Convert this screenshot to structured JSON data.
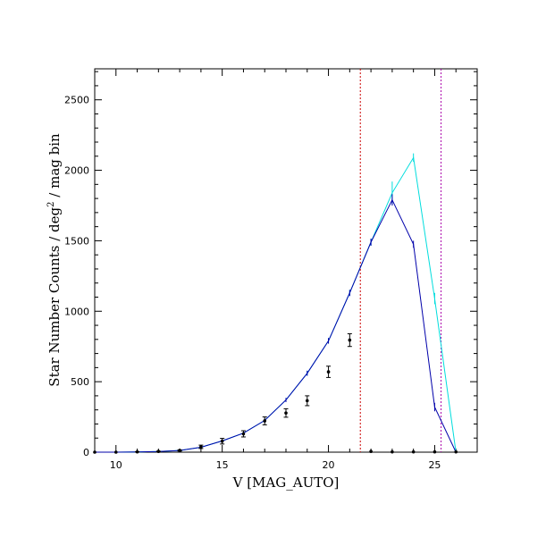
{
  "chart_data": {
    "type": "line",
    "xlabel": "V [MAG_AUTO]",
    "ylabel_parts": [
      "Star Number Counts / deg",
      "2",
      " / mag bin"
    ],
    "xlim": [
      9,
      27
    ],
    "ylim": [
      0,
      2720
    ],
    "x_ticks": [
      10,
      15,
      20,
      25
    ],
    "y_ticks": [
      0,
      500,
      1000,
      1500,
      2000,
      2500
    ],
    "grid": false,
    "legend": "none",
    "series": [
      {
        "color": "#00dddd",
        "style": "line",
        "points": [
          {
            "x": 9,
            "y": 0,
            "err": 0
          },
          {
            "x": 10,
            "y": 0,
            "err": 0
          },
          {
            "x": 11,
            "y": 2,
            "err": 1
          },
          {
            "x": 12,
            "y": 5,
            "err": 2
          },
          {
            "x": 13,
            "y": 12,
            "err": 3
          },
          {
            "x": 14,
            "y": 35,
            "err": 5
          },
          {
            "x": 15,
            "y": 80,
            "err": 8
          },
          {
            "x": 16,
            "y": 135,
            "err": 10
          },
          {
            "x": 17,
            "y": 225,
            "err": 12
          },
          {
            "x": 18,
            "y": 370,
            "err": 15
          },
          {
            "x": 19,
            "y": 560,
            "err": 18
          },
          {
            "x": 20,
            "y": 790,
            "err": 20
          },
          {
            "x": 21,
            "y": 1130,
            "err": 22
          },
          {
            "x": 22,
            "y": 1490,
            "err": 25
          },
          {
            "x": 23,
            "y": 1840,
            "err": 80
          },
          {
            "x": 24,
            "y": 2090,
            "err": 30
          },
          {
            "x": 25,
            "y": 1090,
            "err": 40
          },
          {
            "x": 26,
            "y": 0,
            "err": 0
          }
        ]
      },
      {
        "color": "#0000aa",
        "style": "line",
        "points": [
          {
            "x": 9,
            "y": 0,
            "err": 0
          },
          {
            "x": 10,
            "y": 0,
            "err": 0
          },
          {
            "x": 11,
            "y": 2,
            "err": 1
          },
          {
            "x": 12,
            "y": 5,
            "err": 2
          },
          {
            "x": 13,
            "y": 12,
            "err": 3
          },
          {
            "x": 14,
            "y": 35,
            "err": 5
          },
          {
            "x": 15,
            "y": 80,
            "err": 8
          },
          {
            "x": 16,
            "y": 135,
            "err": 10
          },
          {
            "x": 17,
            "y": 225,
            "err": 12
          },
          {
            "x": 18,
            "y": 370,
            "err": 15
          },
          {
            "x": 19,
            "y": 560,
            "err": 18
          },
          {
            "x": 20,
            "y": 790,
            "err": 20
          },
          {
            "x": 21,
            "y": 1130,
            "err": 22
          },
          {
            "x": 22,
            "y": 1490,
            "err": 25
          },
          {
            "x": 23,
            "y": 1790,
            "err": 40
          },
          {
            "x": 24,
            "y": 1475,
            "err": 25
          },
          {
            "x": 25,
            "y": 320,
            "err": 30
          },
          {
            "x": 26,
            "y": 0,
            "err": 0
          }
        ]
      },
      {
        "color": "#000000",
        "style": "points",
        "points": [
          {
            "x": 9,
            "y": 0,
            "err": 0
          },
          {
            "x": 10,
            "y": 0,
            "err": 0
          },
          {
            "x": 11,
            "y": 2,
            "err": 1
          },
          {
            "x": 12,
            "y": 5,
            "err": 2
          },
          {
            "x": 13,
            "y": 12,
            "err": 4
          },
          {
            "x": 14,
            "y": 38,
            "err": 12
          },
          {
            "x": 15,
            "y": 78,
            "err": 20
          },
          {
            "x": 16,
            "y": 130,
            "err": 22
          },
          {
            "x": 17,
            "y": 222,
            "err": 28
          },
          {
            "x": 18,
            "y": 278,
            "err": 30
          },
          {
            "x": 19,
            "y": 365,
            "err": 35
          },
          {
            "x": 20,
            "y": 570,
            "err": 40
          },
          {
            "x": 21,
            "y": 795,
            "err": 45
          },
          {
            "x": 22,
            "y": 5,
            "err": 0
          },
          {
            "x": 23,
            "y": 2,
            "err": 0
          },
          {
            "x": 24,
            "y": 2,
            "err": 0
          },
          {
            "x": 25,
            "y": 2,
            "err": 0
          },
          {
            "x": 26,
            "y": 2,
            "err": 0
          }
        ]
      }
    ],
    "vertical_lines": [
      {
        "x": 21.5,
        "color": "#cc0000",
        "dash": "dotted"
      },
      {
        "x": 25.3,
        "color": "#aa00aa",
        "dash": "dotted"
      }
    ]
  }
}
